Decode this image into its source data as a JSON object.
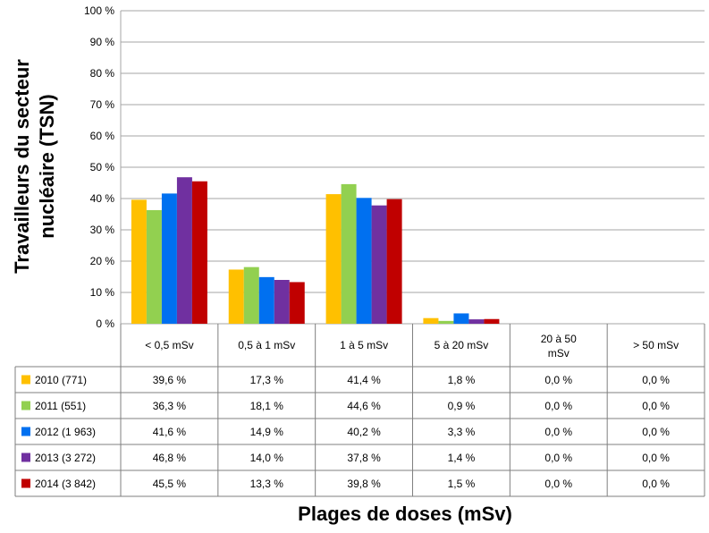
{
  "chart_data": {
    "type": "bar",
    "ylabel": "Travailleurs du secteur nucléaire (TSN)",
    "xlabel": "Plages de doses (mSv)",
    "ylim": [
      0,
      100
    ],
    "yticks": [
      "0 %",
      "10 %",
      "20 %",
      "30 %",
      "40 %",
      "50 %",
      "60 %",
      "70 %",
      "80 %",
      "90 %",
      "100 %"
    ],
    "grid": true,
    "legend": "data table",
    "categories": [
      "< 0,5 mSv",
      "0,5 à 1 mSv",
      "1 à 5 mSv",
      "5 à 20 mSv",
      "20 à 50 mSv",
      "> 50 mSv"
    ],
    "series": [
      {
        "name": "2010 (771)",
        "color": "#FFC000",
        "values": [
          39.6,
          17.3,
          41.4,
          1.8,
          0.0,
          0.0
        ],
        "labels": [
          "39,6 %",
          "17,3 %",
          "41,4 %",
          "1,8 %",
          "0,0 %",
          "0,0 %"
        ]
      },
      {
        "name": "2011 (551)",
        "color": "#92D050",
        "values": [
          36.3,
          18.1,
          44.6,
          0.9,
          0.0,
          0.0
        ],
        "labels": [
          "36,3 %",
          "18,1 %",
          "44,6 %",
          "0,9 %",
          "0,0 %",
          "0,0 %"
        ]
      },
      {
        "name": "2012 (1 963)",
        "color": "#0070F0",
        "values": [
          41.6,
          14.9,
          40.2,
          3.3,
          0.0,
          0.0
        ],
        "labels": [
          "41,6 %",
          "14,9 %",
          "40,2 %",
          "3,3 %",
          "0,0 %",
          "0,0 %"
        ]
      },
      {
        "name": "2013 (3 272)",
        "color": "#7030A0",
        "values": [
          46.8,
          14.0,
          37.8,
          1.4,
          0.0,
          0.0
        ],
        "labels": [
          "46,8 %",
          "14,0 %",
          "37,8 %",
          "1,4 %",
          "0,0 %",
          "0,0 %"
        ]
      },
      {
        "name": "2014 (3 842)",
        "color": "#C00000",
        "values": [
          45.5,
          13.3,
          39.8,
          1.5,
          0.0,
          0.0
        ],
        "labels": [
          "45,5 %",
          "13,3 %",
          "39,8 %",
          "1,5 %",
          "0,0 %",
          "0,0 %"
        ]
      }
    ]
  }
}
